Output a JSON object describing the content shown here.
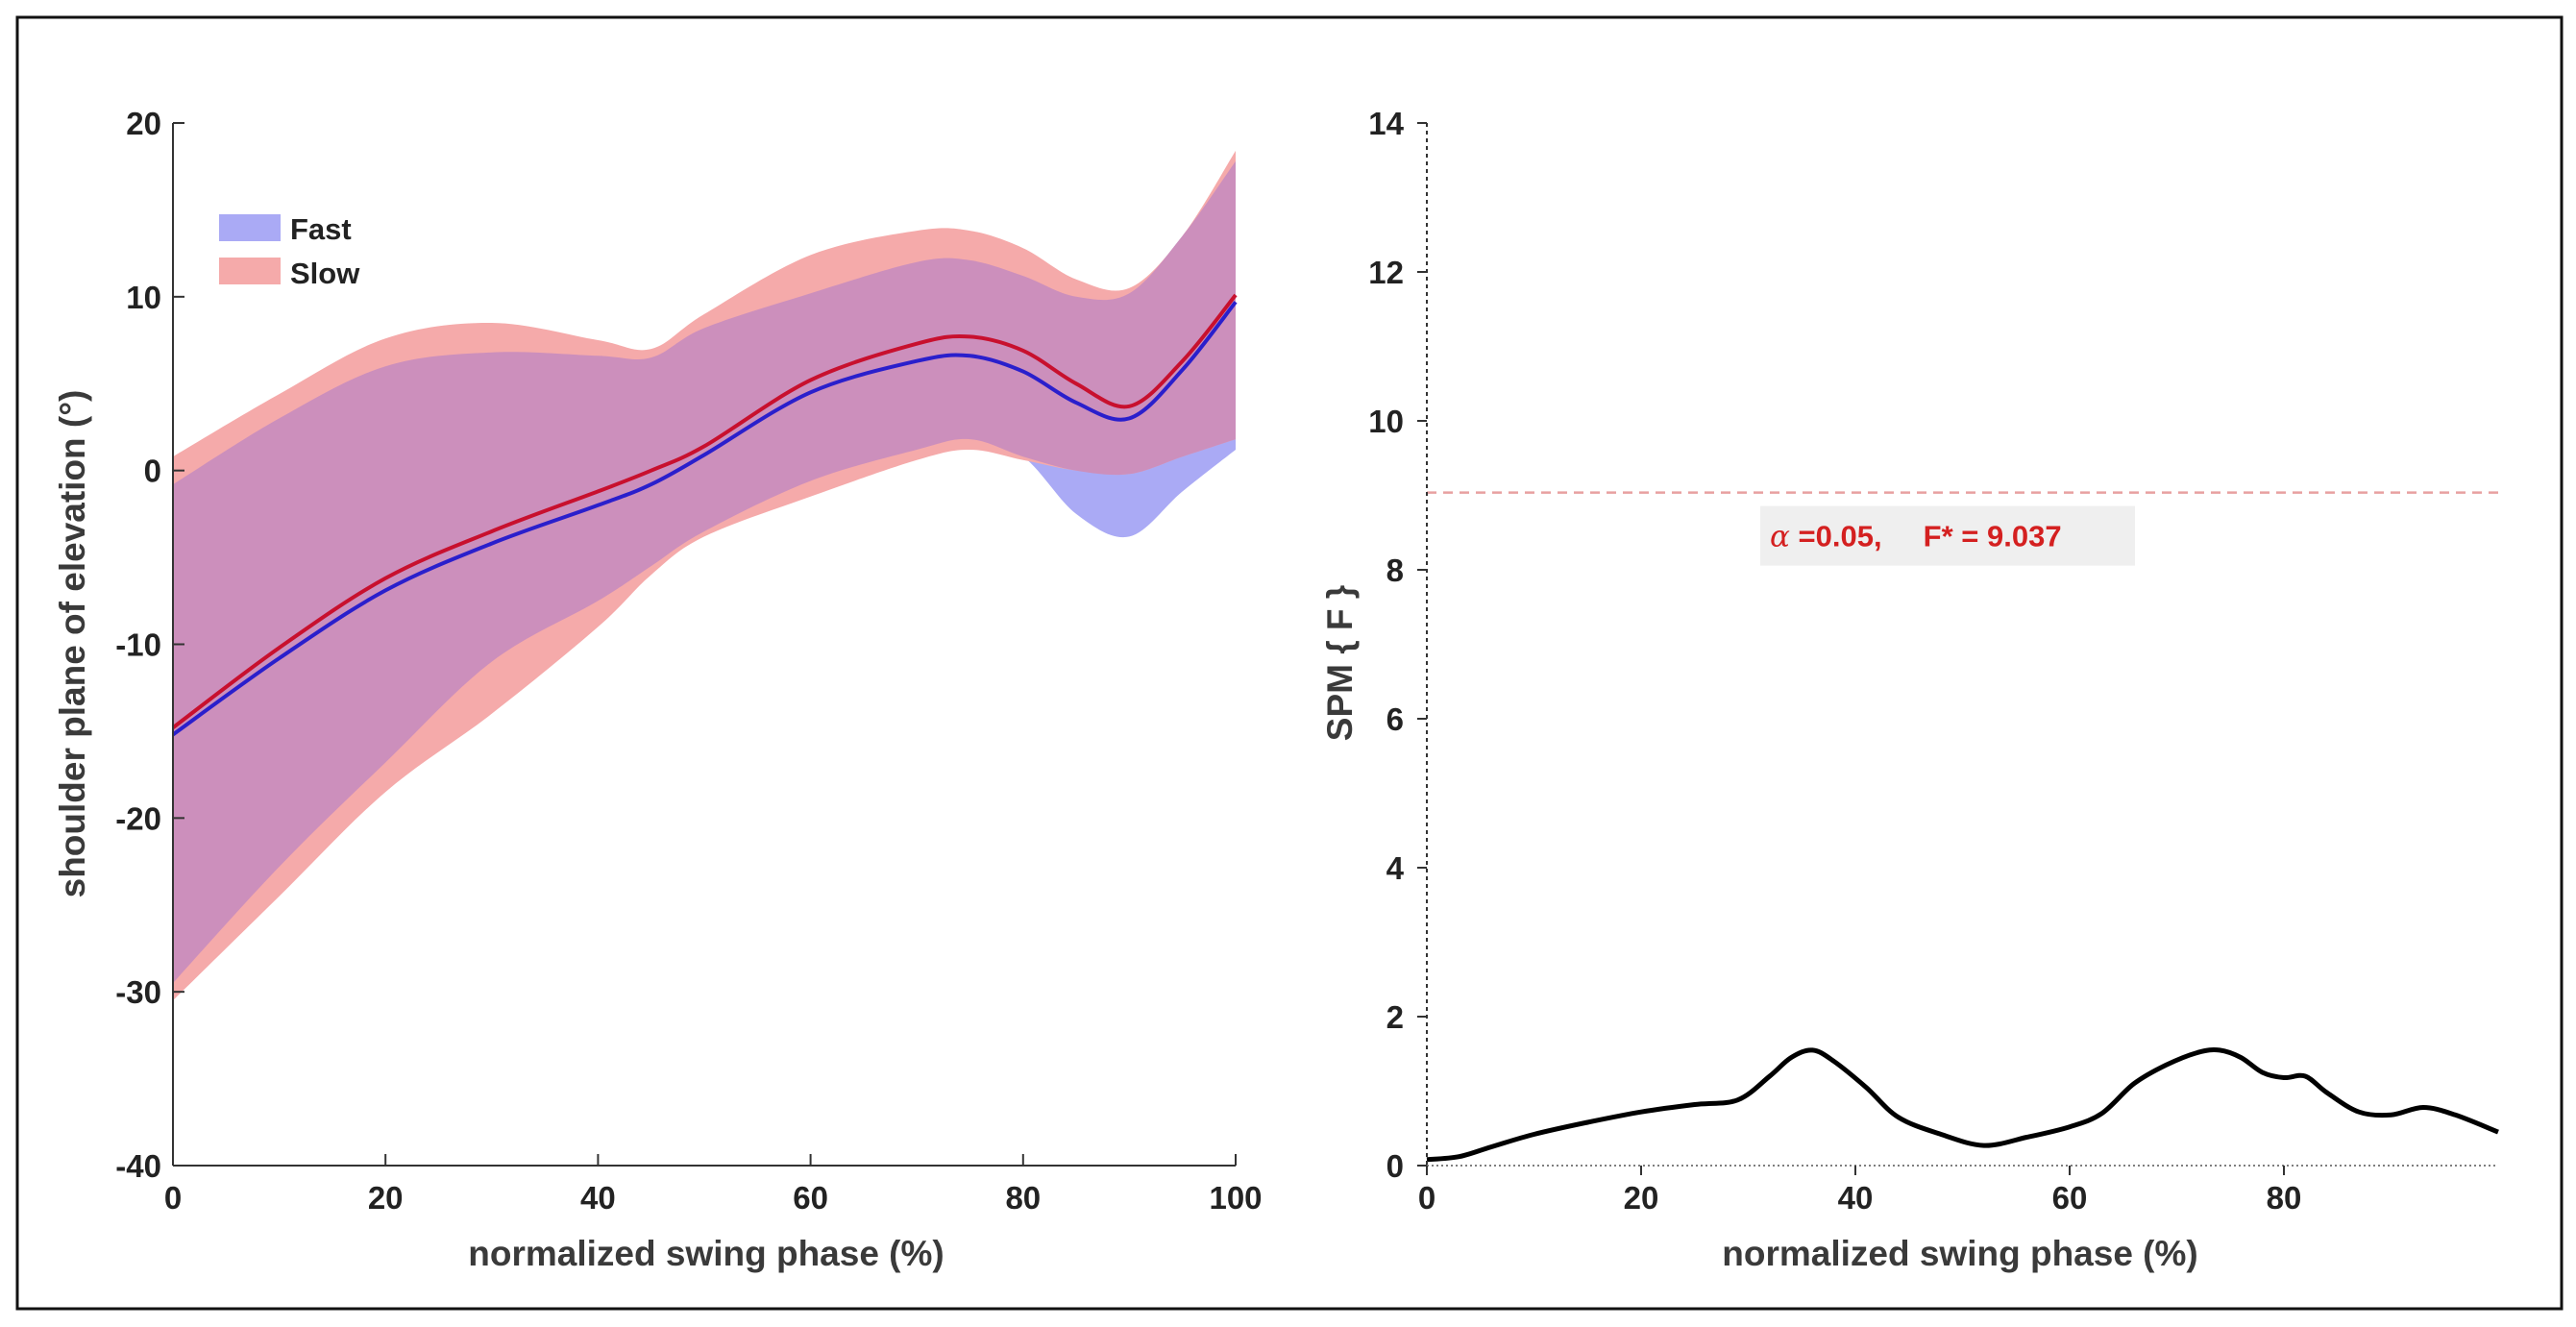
{
  "chart_data": [
    {
      "type": "line",
      "panel": "left",
      "xlabel": "normalized swing phase (%)",
      "ylabel": "shoulder plane of elevation (°)",
      "xlim": [
        0,
        100
      ],
      "ylim": [
        -40,
        20
      ],
      "xticks": [
        0,
        20,
        40,
        60,
        80,
        100
      ],
      "yticks": [
        -40,
        -30,
        -20,
        -10,
        0,
        10,
        20
      ],
      "x": [
        0,
        10,
        20,
        30,
        40,
        45,
        50,
        60,
        70,
        75,
        80,
        85,
        90,
        95,
        100
      ],
      "series": [
        {
          "name": "Fast",
          "color": "#2a1fcc",
          "band_color": "#aaaaf5",
          "mean": [
            -15.2,
            -10.8,
            -6.9,
            -4.2,
            -2.0,
            -0.8,
            0.9,
            4.5,
            6.3,
            6.6,
            5.7,
            3.9,
            3.0,
            5.8,
            9.7
          ],
          "upper": [
            -0.8,
            3.0,
            6.0,
            6.8,
            6.6,
            6.5,
            8.2,
            10.2,
            12.0,
            12.1,
            11.2,
            10.0,
            10.2,
            13.5,
            17.8
          ],
          "lower": [
            -29.5,
            -22.8,
            -16.8,
            -11.0,
            -7.5,
            -5.5,
            -3.5,
            -0.6,
            1.2,
            1.8,
            0.8,
            -2.5,
            -3.8,
            -1.2,
            1.2
          ]
        },
        {
          "name": "Slow",
          "color": "#c8102e",
          "band_color": "#f5aaaa",
          "mean": [
            -14.8,
            -10.2,
            -6.2,
            -3.5,
            -1.2,
            0.0,
            1.4,
            5.2,
            7.3,
            7.7,
            6.9,
            5.0,
            3.7,
            6.3,
            10.1
          ],
          "upper": [
            0.8,
            4.4,
            7.6,
            8.5,
            7.5,
            7.0,
            9.0,
            12.4,
            13.8,
            13.8,
            12.8,
            11.0,
            10.5,
            13.5,
            18.4
          ],
          "lower": [
            -30.5,
            -24.5,
            -18.5,
            -14.0,
            -9.0,
            -6.0,
            -3.8,
            -1.5,
            0.6,
            1.2,
            0.6,
            0.0,
            -0.2,
            0.8,
            1.8
          ]
        }
      ],
      "legend": [
        "Fast",
        "Slow"
      ],
      "legend_position": "top-left",
      "overlap_color": "#cc8fbc"
    },
    {
      "type": "line",
      "panel": "right",
      "xlabel": "normalized swing phase (%)",
      "ylabel": "SPM { F }",
      "xlim": [
        0,
        100
      ],
      "ylim": [
        0,
        14
      ],
      "xticks": [
        0,
        20,
        40,
        60,
        80
      ],
      "yticks": [
        0,
        2,
        4,
        6,
        8,
        10,
        12,
        14
      ],
      "x": [
        0,
        3,
        6,
        10,
        15,
        20,
        25,
        29,
        32,
        34,
        36,
        38,
        41,
        44,
        48,
        52,
        56,
        60,
        63,
        66,
        69,
        72,
        74,
        76,
        78,
        80,
        82,
        84,
        87,
        90,
        93,
        96,
        100
      ],
      "series": [
        {
          "name": "SPM{F}",
          "color": "#000000",
          "values": [
            0.08,
            0.12,
            0.25,
            0.42,
            0.58,
            0.72,
            0.82,
            0.88,
            1.2,
            1.45,
            1.55,
            1.4,
            1.05,
            0.65,
            0.42,
            0.27,
            0.38,
            0.52,
            0.7,
            1.1,
            1.35,
            1.52,
            1.55,
            1.45,
            1.25,
            1.18,
            1.2,
            0.98,
            0.72,
            0.68,
            0.78,
            0.68,
            0.45
          ]
        }
      ],
      "threshold": 9.037,
      "threshold_color": "#e8a0a0",
      "threshold_label_alpha": "α",
      "threshold_label_text": " =0.05,     F* = 9.037"
    }
  ]
}
